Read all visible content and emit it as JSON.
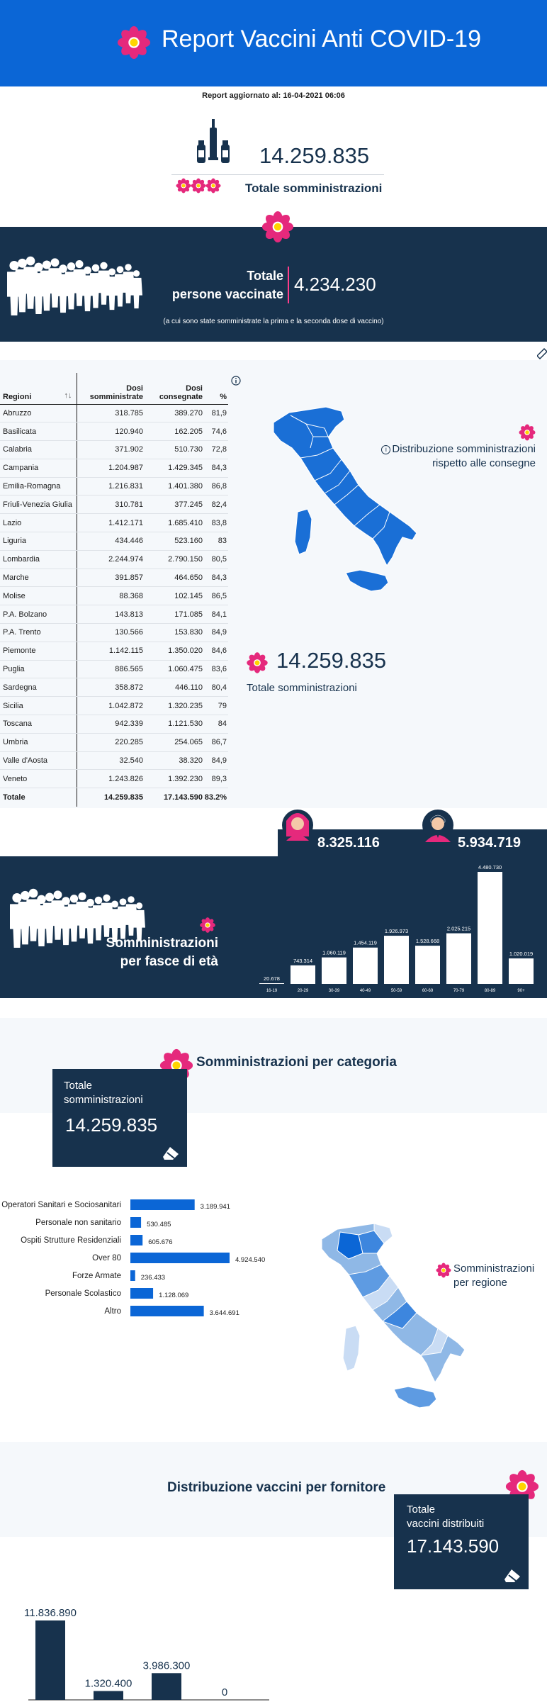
{
  "header": {
    "title": "Report Vaccini Anti COVID-19"
  },
  "report_update": "Report aggiornato al: 16-04-2021 06:06",
  "totals": {
    "administrations": "14.259.835",
    "administrations_label": "Totale somministrazioni"
  },
  "vaccinated": {
    "label_line1": "Totale",
    "label_line2": "persone vaccinate",
    "value": "4.234.230",
    "note": "(a cui sono state somministrate la prima e la seconda dose di vaccino)"
  },
  "region_table": {
    "headers": [
      "Regioni",
      "Dosi somministrate",
      "Dosi consegnate",
      "%"
    ],
    "rows": [
      [
        "Abruzzo",
        "318.785",
        "389.270",
        "81,9"
      ],
      [
        "Basilicata",
        "120.940",
        "162.205",
        "74,6"
      ],
      [
        "Calabria",
        "371.902",
        "510.730",
        "72,8"
      ],
      [
        "Campania",
        "1.204.987",
        "1.429.345",
        "84,3"
      ],
      [
        "Emilia-Romagna",
        "1.216.831",
        "1.401.380",
        "86,8"
      ],
      [
        "Friuli-Venezia Giulia",
        "310.781",
        "377.245",
        "82,4"
      ],
      [
        "Lazio",
        "1.412.171",
        "1.685.410",
        "83,8"
      ],
      [
        "Liguria",
        "434.446",
        "523.160",
        "83"
      ],
      [
        "Lombardia",
        "2.244.974",
        "2.790.150",
        "80,5"
      ],
      [
        "Marche",
        "391.857",
        "464.650",
        "84,3"
      ],
      [
        "Molise",
        "88.368",
        "102.145",
        "86,5"
      ],
      [
        "P.A. Bolzano",
        "143.813",
        "171.085",
        "84,1"
      ],
      [
        "P.A. Trento",
        "130.566",
        "153.830",
        "84,9"
      ],
      [
        "Piemonte",
        "1.142.115",
        "1.350.020",
        "84,6"
      ],
      [
        "Puglia",
        "886.565",
        "1.060.475",
        "83,6"
      ],
      [
        "Sardegna",
        "358.872",
        "446.110",
        "80,4"
      ],
      [
        "Sicilia",
        "1.042.872",
        "1.320.235",
        "79"
      ],
      [
        "Toscana",
        "942.339",
        "1.121.530",
        "84"
      ],
      [
        "Umbria",
        "220.285",
        "254.065",
        "86,7"
      ],
      [
        "Valle d'Aosta",
        "32.540",
        "38.320",
        "84,9"
      ],
      [
        "Veneto",
        "1.243.826",
        "1.392.230",
        "89,3"
      ]
    ],
    "total_row": [
      "Totale",
      "14.259.835",
      "17.143.590",
      "83.2%"
    ]
  },
  "distribution": {
    "label_line1": "Distribuzione somministrazioni",
    "label_line2": "rispetto alle consegne",
    "value": "14.259.835",
    "value_label": "Totale somministrazioni"
  },
  "gender": {
    "female": "8.325.116",
    "male": "5.934.719"
  },
  "age": {
    "label_line1": "Somministrazioni",
    "label_line2": "per fasce di età"
  },
  "categories": {
    "title": "Somministrazioni per categoria",
    "total_label_line1": "Totale",
    "total_label_line2": "somministrazioni",
    "total_value": "14.259.835",
    "region_label_line1": "Somministrazioni",
    "region_label_line2": "per regione"
  },
  "supplier": {
    "title": "Distribuzione vaccini per fornitore",
    "total_label_line1": "Totale",
    "total_label_line2": "vaccini distribuiti",
    "total_value": "17.143.590"
  },
  "colors": {
    "navy": "#17324d",
    "blue": "#0b66d6",
    "pink": "#e5297c",
    "flower_center": "#ffd400"
  },
  "chart_data": [
    {
      "type": "bar",
      "categories": [
        "16-19",
        "20-29",
        "30-39",
        "40-49",
        "50-59",
        "60-69",
        "70-79",
        "80-89",
        "90+"
      ],
      "values": [
        20678,
        743314,
        1060119,
        1454119,
        1926973,
        1528668,
        2025215,
        4480730,
        1020019
      ],
      "value_labels": [
        "20.678",
        "743.314",
        "1.060.119",
        "1.454.119",
        "1.926.973",
        "1.528.668",
        "2.025.215",
        "4.480.730",
        "1.020.019"
      ],
      "title": "Somministrazioni per fasce di età"
    },
    {
      "type": "bar",
      "orientation": "horizontal",
      "categories": [
        "Operatori Sanitari e Sociosanitari",
        "Personale non sanitario",
        "Ospiti Strutture Residenziali",
        "Over 80",
        "Forze Armate",
        "Personale Scolastico",
        "Altro"
      ],
      "values": [
        3189941,
        530485,
        605676,
        4924540,
        236433,
        1128069,
        3644691
      ],
      "value_labels": [
        "3.189.941",
        "530.485",
        "605.676",
        "4.924.540",
        "236.433",
        "1.128.069",
        "3.644.691"
      ],
      "title": "Somministrazioni per categoria"
    },
    {
      "type": "bar",
      "values": [
        11836890,
        1320400,
        3986300,
        0
      ],
      "value_labels": [
        "11.836.890",
        "1.320.400",
        "3.986.300",
        "0"
      ],
      "title": "Distribuzione vaccini per fornitore"
    }
  ]
}
